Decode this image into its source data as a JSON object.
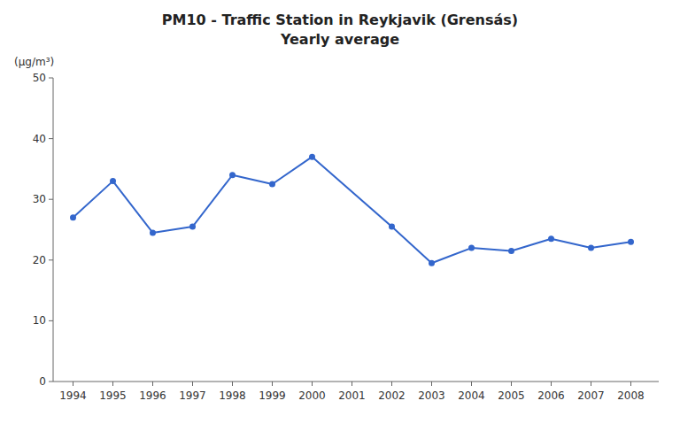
{
  "chart_data": {
    "type": "line",
    "title": "PM10 - Traffic Station in Reykjavik (Grensás)",
    "subtitle": "Yearly average",
    "y_label": "(µg/m³)",
    "x": [
      1994,
      1995,
      1996,
      1997,
      1998,
      1999,
      2000,
      2002,
      2003,
      2004,
      2005,
      2006,
      2007,
      2008
    ],
    "values": [
      27.0,
      33.0,
      24.5,
      25.5,
      34.0,
      32.5,
      37.0,
      25.5,
      19.5,
      22.0,
      21.5,
      23.5,
      22.0,
      23.0
    ],
    "color": "#3366cc",
    "marker": "circle",
    "xlim": [
      1993.5,
      2008.7
    ],
    "xticks": [
      1994,
      1995,
      1996,
      1997,
      1998,
      1999,
      2000,
      2001,
      2002,
      2003,
      2004,
      2005,
      2006,
      2007,
      2008
    ],
    "ylim": [
      0,
      50
    ],
    "yticks": [
      0,
      10,
      20,
      30,
      40,
      50
    ],
    "grid": false
  }
}
